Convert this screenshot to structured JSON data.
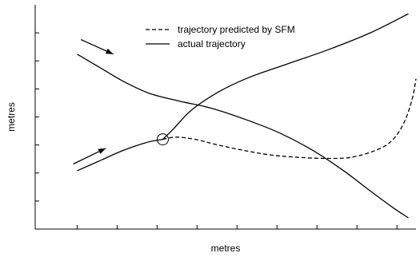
{
  "chart_data": {
    "type": "line",
    "title": "",
    "xlabel": "metres",
    "ylabel": "metres",
    "xlim": [
      0,
      10
    ],
    "ylim": [
      0,
      10
    ],
    "legend_position": "top-center",
    "grid": false,
    "xticks": [
      1.1,
      2.15,
      3.2,
      4.25,
      5.3,
      6.35,
      7.4,
      8.45,
      9.5
    ],
    "yticks": [
      1.25,
      2.5,
      3.75,
      5.0,
      6.25,
      7.5,
      8.75
    ],
    "series": [
      {
        "name": "trajectory predicted by SFM",
        "style": "dashed",
        "color": "#000000",
        "x": [
          3.35,
          3.7,
          4.2,
          4.8,
          5.5,
          6.2,
          6.9,
          7.6,
          8.3,
          9.0,
          9.4,
          9.7,
          9.9,
          10.0
        ],
        "y": [
          4.0,
          4.1,
          4.0,
          3.75,
          3.5,
          3.3,
          3.2,
          3.15,
          3.2,
          3.55,
          4.0,
          4.8,
          5.8,
          6.7
        ]
      },
      {
        "name": "actual trajectory",
        "style": "solid",
        "color": "#000000",
        "x": [
          3.35,
          3.65,
          4.1,
          4.8,
          5.6,
          6.6,
          7.7,
          8.8,
          9.8
        ],
        "y": [
          4.0,
          4.5,
          5.3,
          6.1,
          6.75,
          7.35,
          8.0,
          8.75,
          9.6
        ]
      },
      {
        "name": "",
        "style": "solid",
        "color": "#000000",
        "x": [
          1.1,
          1.7,
          2.3,
          2.9,
          3.35
        ],
        "y": [
          2.6,
          3.05,
          3.5,
          3.85,
          4.0
        ]
      },
      {
        "name": "",
        "style": "solid",
        "color": "#000000",
        "x": [
          1.1,
          1.7,
          2.3,
          3.0,
          3.8,
          4.6,
          5.5,
          6.4,
          7.3,
          8.1,
          8.8,
          9.4,
          9.8
        ],
        "y": [
          7.8,
          7.2,
          6.6,
          6.05,
          5.7,
          5.4,
          4.9,
          4.3,
          3.5,
          2.6,
          1.7,
          0.95,
          0.5
        ]
      }
    ],
    "annotations": [
      {
        "type": "arrow",
        "from": [
          1.2,
          8.45
        ],
        "to": [
          2.05,
          7.8
        ]
      },
      {
        "type": "arrow",
        "from": [
          1.0,
          2.9
        ],
        "to": [
          1.85,
          3.6
        ]
      },
      {
        "type": "circle",
        "at": [
          3.35,
          4.0
        ]
      }
    ]
  }
}
